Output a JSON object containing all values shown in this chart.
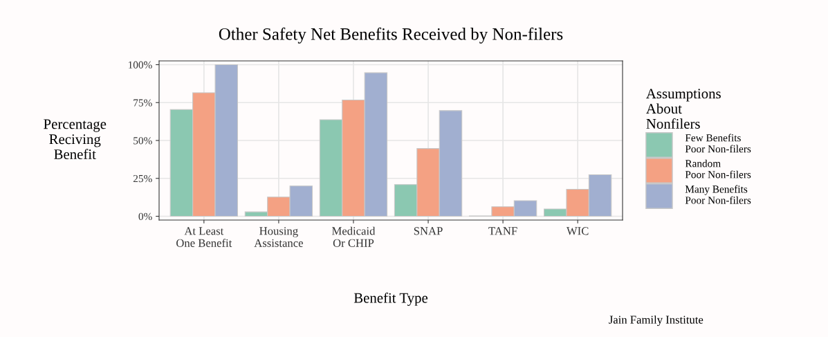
{
  "chart_data": {
    "type": "bar",
    "title": "Other Safety Net Benefits Received by Non-filers",
    "xlabel": "Benefit Type",
    "ylabel": "Percentage\nReciving\nBenefit",
    "legend_title": "Assumptions\nAbout\nNonfilers",
    "categories": [
      "At Least\nOne Benefit",
      "Housing\nAssistance",
      "Medicaid\nOr CHIP",
      "SNAP",
      "TANF",
      "WIC"
    ],
    "series": [
      {
        "name": "Few Benefits\nPoor Non-filers",
        "color": "#8bc8b1",
        "values": [
          70.4,
          2.9,
          63.7,
          20.9,
          0.2,
          4.8
        ]
      },
      {
        "name": "Random\nPoor Non-filers",
        "color": "#f4a183",
        "values": [
          81.5,
          12.7,
          76.7,
          44.7,
          6.3,
          17.8
        ]
      },
      {
        "name": "Many Benefits\nPoor Non-filers",
        "color": "#a1afd0",
        "values": [
          100,
          20,
          94.7,
          69.7,
          10.3,
          27.4
        ]
      }
    ],
    "ylim": [
      -2.5,
      102.5
    ],
    "yticks": [
      {
        "value": 0,
        "label": "0%"
      },
      {
        "value": 25,
        "label": "25%"
      },
      {
        "value": 50,
        "label": "50%"
      },
      {
        "value": 75,
        "label": "75%"
      },
      {
        "value": 100,
        "label": "100%"
      }
    ],
    "grid": true,
    "legend": "right",
    "annotations": [
      "Jain Family Institute"
    ]
  }
}
